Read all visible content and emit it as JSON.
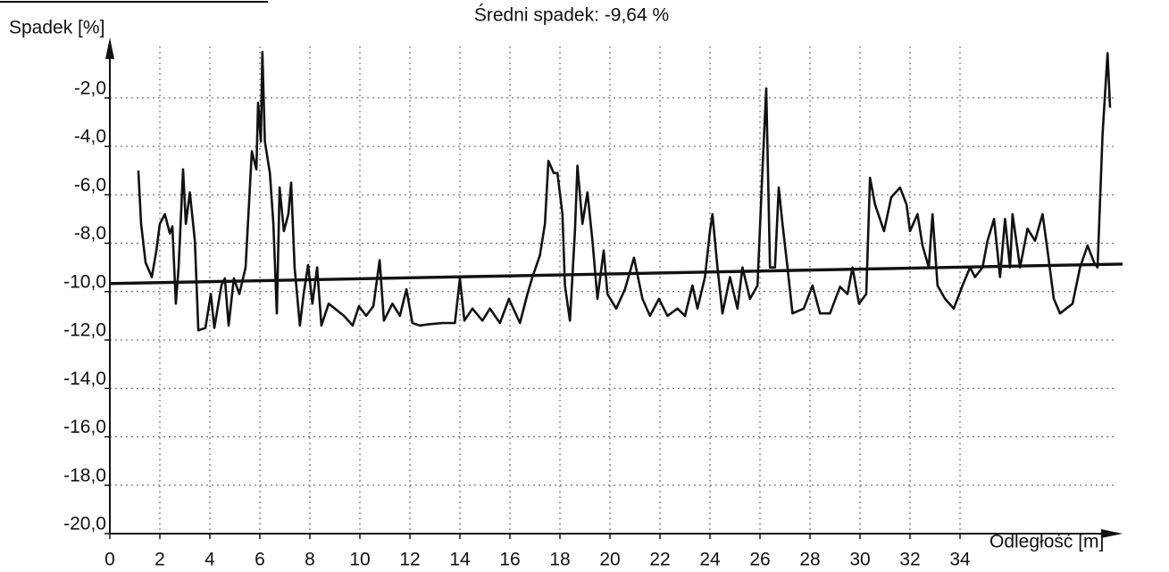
{
  "chart_data": {
    "type": "line",
    "title": "Średni spadek: -9,64 %",
    "y_label": "Spadek [%]",
    "x_label": "Odległość [m]",
    "xlim": [
      0,
      40.5
    ],
    "ylim": [
      -20,
      0.5
    ],
    "xticks": [
      0,
      2,
      4,
      6,
      8,
      10,
      12,
      14,
      16,
      18,
      20,
      22,
      24,
      26,
      28,
      30,
      32,
      34
    ],
    "yticks": [
      {
        "value": -2,
        "label": "-2,0"
      },
      {
        "value": -4,
        "label": "-4,0"
      },
      {
        "value": -6,
        "label": "-6,0"
      },
      {
        "value": -8,
        "label": "-8,0"
      },
      {
        "value": -10,
        "label": "-10,0"
      },
      {
        "value": -12,
        "label": "-12,0"
      },
      {
        "value": -14,
        "label": "-14,0"
      },
      {
        "value": -16,
        "label": "-16,0"
      },
      {
        "value": -18,
        "label": "-18,0"
      },
      {
        "value": -20,
        "label": "-20,0"
      }
    ],
    "grid": true,
    "series": [
      {
        "color": "#111111",
        "x": [
          1.14,
          1.25,
          1.43,
          1.68,
          1.86,
          2.0,
          2.2,
          2.4,
          2.5,
          2.64,
          2.75,
          2.93,
          3.04,
          3.2,
          3.4,
          3.54,
          3.82,
          4.04,
          4.18,
          4.46,
          4.6,
          4.75,
          4.96,
          5.18,
          5.43,
          5.68,
          5.86,
          5.93,
          6.04,
          6.1,
          6.2,
          6.4,
          6.54,
          6.68,
          6.79,
          6.96,
          7.14,
          7.25,
          7.39,
          7.6,
          7.75,
          7.93,
          8.1,
          8.29,
          8.46,
          8.75,
          9.0,
          9.36,
          9.71,
          9.96,
          10.25,
          10.54,
          10.79,
          10.96,
          11.3,
          11.6,
          11.86,
          12.1,
          12.4,
          12.75,
          13.3,
          13.8,
          14.0,
          14.18,
          14.5,
          14.9,
          15.2,
          15.6,
          15.96,
          16.4,
          16.7,
          16.9,
          17.2,
          17.4,
          17.54,
          17.75,
          17.9,
          18.1,
          18.2,
          18.4,
          18.6,
          18.7,
          18.9,
          19.1,
          19.3,
          19.5,
          19.75,
          19.9,
          20.25,
          20.6,
          20.96,
          21.3,
          21.6,
          21.96,
          22.3,
          22.7,
          23.0,
          23.3,
          23.5,
          23.8,
          24.0,
          24.1,
          24.3,
          24.5,
          24.8,
          25.1,
          25.3,
          25.6,
          25.9,
          26.1,
          26.25,
          26.4,
          26.6,
          26.75,
          26.9,
          27.1,
          27.3,
          27.75,
          28.1,
          28.4,
          28.8,
          29.2,
          29.5,
          29.7,
          29.96,
          30.25,
          30.4,
          30.6,
          30.96,
          31.25,
          31.6,
          31.86,
          32.0,
          32.3,
          32.5,
          32.75,
          32.9,
          33.1,
          33.4,
          33.75,
          34.1,
          34.4,
          34.6,
          34.9,
          35.1,
          35.36,
          35.6,
          35.8,
          36.0,
          36.1,
          36.4,
          36.7,
          37.0,
          37.3,
          37.5,
          37.75,
          38.0,
          38.5,
          38.8,
          39.1,
          39.36,
          39.5,
          39.7,
          39.9,
          40.0
        ],
        "values": [
          -5.0,
          -7.2,
          -8.8,
          -9.4,
          -8.3,
          -7.2,
          -6.8,
          -7.6,
          -7.3,
          -10.5,
          -9.0,
          -4.95,
          -7.2,
          -5.9,
          -7.9,
          -11.6,
          -11.5,
          -10.1,
          -11.5,
          -9.75,
          -9.45,
          -11.4,
          -9.45,
          -10.1,
          -9.0,
          -4.2,
          -4.95,
          -2.2,
          -3.8,
          -0.1,
          -3.8,
          -5.1,
          -7.2,
          -10.9,
          -5.7,
          -7.5,
          -6.8,
          -5.5,
          -9.0,
          -11.4,
          -10.1,
          -8.9,
          -10.5,
          -9.0,
          -11.4,
          -10.5,
          -10.7,
          -11.0,
          -11.4,
          -10.6,
          -11.0,
          -10.6,
          -8.7,
          -11.2,
          -10.5,
          -11.0,
          -9.9,
          -11.3,
          -11.4,
          -11.35,
          -11.3,
          -11.3,
          -9.45,
          -11.2,
          -10.7,
          -11.2,
          -10.7,
          -11.3,
          -10.3,
          -11.3,
          -10.1,
          -9.4,
          -8.5,
          -7.2,
          -4.6,
          -5.1,
          -5.1,
          -6.8,
          -9.75,
          -11.2,
          -7.5,
          -4.8,
          -7.2,
          -5.9,
          -7.9,
          -10.3,
          -8.3,
          -10.1,
          -10.7,
          -9.9,
          -8.6,
          -10.3,
          -11.0,
          -10.3,
          -11.0,
          -10.7,
          -11.0,
          -9.75,
          -10.7,
          -9.4,
          -7.5,
          -6.8,
          -9.0,
          -10.9,
          -9.4,
          -10.7,
          -9.0,
          -10.3,
          -9.75,
          -4.95,
          -1.6,
          -9.0,
          -9.0,
          -5.7,
          -7.2,
          -9.0,
          -10.9,
          -10.7,
          -9.75,
          -10.9,
          -10.9,
          -9.8,
          -10.1,
          -9.0,
          -10.5,
          -10.1,
          -5.3,
          -6.4,
          -7.5,
          -6.1,
          -5.7,
          -6.4,
          -7.5,
          -6.8,
          -8.1,
          -9.0,
          -6.8,
          -9.75,
          -10.3,
          -10.7,
          -9.75,
          -9.0,
          -9.4,
          -9.0,
          -7.9,
          -7.0,
          -9.4,
          -7.0,
          -9.0,
          -6.8,
          -9.0,
          -7.4,
          -7.9,
          -6.8,
          -8.3,
          -10.3,
          -10.9,
          -10.5,
          -9.0,
          -8.1,
          -8.8,
          -9.0,
          -3.5,
          -0.15,
          -2.4
        ]
      },
      {
        "color": "#111111",
        "x": [
          0,
          40.5
        ],
        "values": [
          -9.67,
          -8.86
        ]
      }
    ]
  }
}
